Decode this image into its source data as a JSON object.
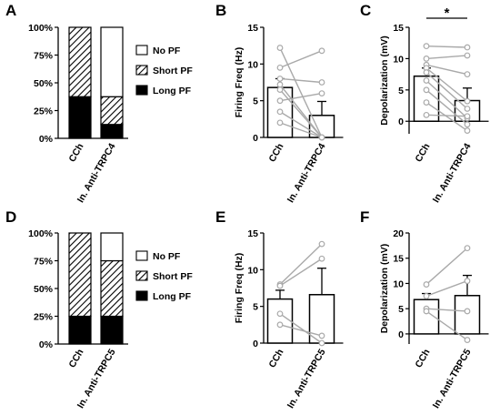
{
  "chart_data": [
    {
      "panel": "A",
      "type": "bar",
      "stacked": true,
      "categories": [
        "CCh",
        "In. Anti-TRPC4"
      ],
      "series": [
        {
          "name": "Long PF",
          "values": [
            37.5,
            12.5
          ],
          "pattern": "solid"
        },
        {
          "name": "Short PF",
          "values": [
            62.5,
            25
          ],
          "pattern": "hatch"
        },
        {
          "name": "No PF",
          "values": [
            0,
            62.5
          ],
          "pattern": "empty"
        }
      ],
      "yticks": [
        "0%",
        "25%",
        "50%",
        "75%",
        "100%"
      ],
      "ylim": [
        0,
        100
      ],
      "legend": "right"
    },
    {
      "panel": "B",
      "type": "bar",
      "categories": [
        "CCh",
        "In. Anti-TRPC4"
      ],
      "means": [
        6.8,
        3.0
      ],
      "errors": [
        1.2,
        1.9
      ],
      "paired": [
        [
          12.2,
          0
        ],
        [
          9.5,
          11.8
        ],
        [
          8.0,
          7.5
        ],
        [
          7.2,
          0
        ],
        [
          6.5,
          0
        ],
        [
          5.0,
          6.0
        ],
        [
          3.5,
          0
        ],
        [
          2.0,
          0
        ]
      ],
      "ylabel": "Firing Freq (Hz)",
      "yticks": [
        "0",
        "5",
        "10",
        "15"
      ],
      "ylim": [
        0,
        15
      ]
    },
    {
      "panel": "C",
      "type": "bar",
      "categories": [
        "CCh",
        "In. Anti-TRPC4"
      ],
      "means": [
        7.2,
        3.3
      ],
      "errors": [
        1.3,
        2.0
      ],
      "paired": [
        [
          12.0,
          11.8
        ],
        [
          10.0,
          10.5
        ],
        [
          9.0,
          7.5
        ],
        [
          8.5,
          3.2
        ],
        [
          7.8,
          2.0
        ],
        [
          6.5,
          0.5
        ],
        [
          5.0,
          -0.5
        ],
        [
          3.0,
          -1.5
        ],
        [
          1.0,
          0.8
        ]
      ],
      "ylabel": "Depolarization (mV)",
      "yticks": [
        "0",
        "5",
        "10",
        "15"
      ],
      "ylim": [
        -2,
        15
      ],
      "significance": "*"
    },
    {
      "panel": "D",
      "type": "bar",
      "stacked": true,
      "categories": [
        "CCh",
        "In. Anti-TRPC5"
      ],
      "series": [
        {
          "name": "Long PF",
          "values": [
            25,
            25
          ],
          "pattern": "solid"
        },
        {
          "name": "Short PF",
          "values": [
            75,
            50
          ],
          "pattern": "hatch"
        },
        {
          "name": "No PF",
          "values": [
            0,
            25
          ],
          "pattern": "empty"
        }
      ],
      "yticks": [
        "0%",
        "25%",
        "50%",
        "75%",
        "100%"
      ],
      "ylim": [
        0,
        100
      ],
      "legend": "right"
    },
    {
      "panel": "E",
      "type": "bar",
      "categories": [
        "CCh",
        "In. Anti-TRPC5"
      ],
      "means": [
        6.0,
        6.6
      ],
      "errors": [
        1.2,
        3.6
      ],
      "paired": [
        [
          8.0,
          13.5
        ],
        [
          7.8,
          11.5
        ],
        [
          4.0,
          0
        ],
        [
          2.5,
          1.0
        ]
      ],
      "ylabel": "Firing Freq (Hz)",
      "yticks": [
        "0",
        "5",
        "10",
        "15"
      ],
      "ylim": [
        0,
        15
      ]
    },
    {
      "panel": "F",
      "type": "bar",
      "categories": [
        "CCh",
        "In. Anti-TRPC5"
      ],
      "means": [
        6.8,
        7.6
      ],
      "errors": [
        1.2,
        4.0
      ],
      "paired": [
        [
          9.8,
          17.0
        ],
        [
          7.5,
          10.5
        ],
        [
          5.0,
          4.5
        ],
        [
          4.5,
          -1.2
        ]
      ],
      "ylabel": "Depolarization (mV)",
      "yticks": [
        "0",
        "5",
        "10",
        "15",
        "20"
      ],
      "ylim": [
        -2,
        20
      ]
    }
  ]
}
